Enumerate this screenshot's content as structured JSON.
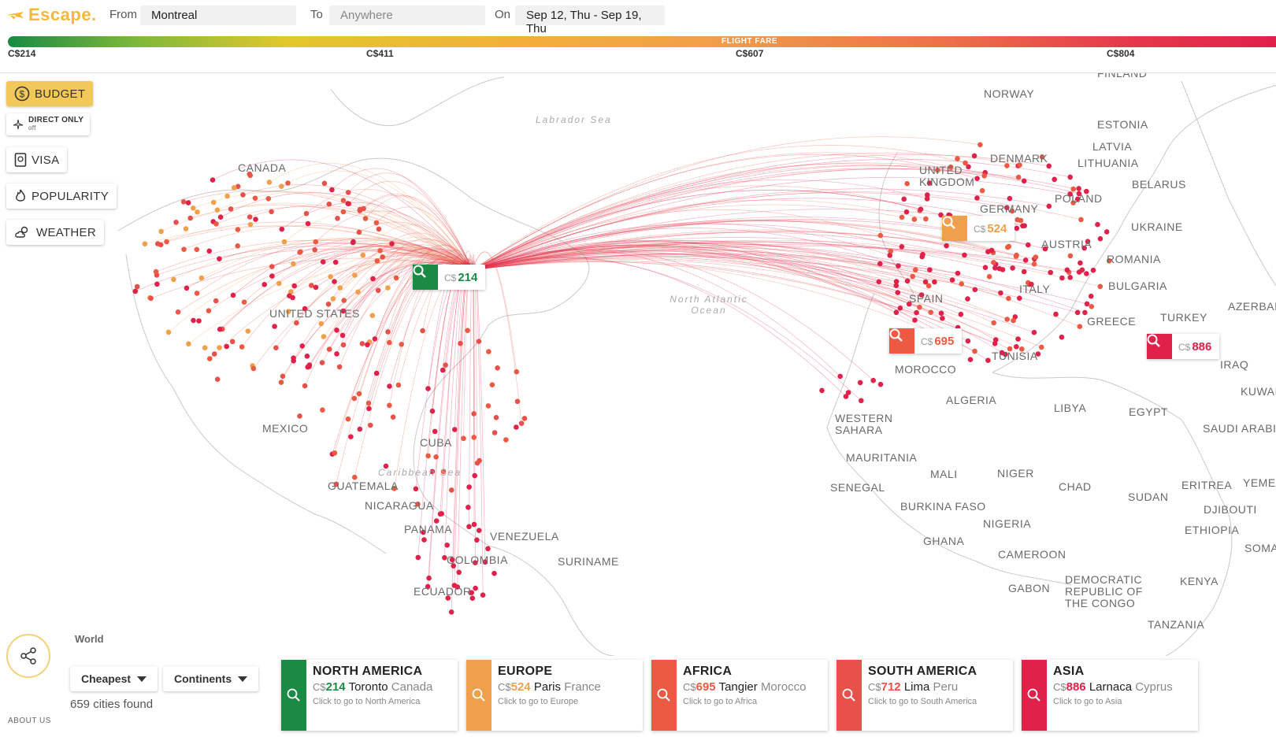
{
  "app": {
    "name": "Escape."
  },
  "search": {
    "from_label": "From",
    "from_value": "Montreal",
    "to_label": "To",
    "to_placeholder": "Anywhere",
    "on_label": "On",
    "dates": "Sep 12, Thu - Sep 19, Thu"
  },
  "fare_bar": {
    "title": "FLIGHT FARE",
    "ticks": [
      "C$214",
      "C$411",
      "C$607",
      "C$804"
    ]
  },
  "controls": {
    "budget": "BUDGET",
    "direct_only": "DIRECT ONLY",
    "direct_only_state": "off",
    "visa": "VISA",
    "popularity": "POPULARITY",
    "weather": "WEATHER"
  },
  "map": {
    "labels": [
      "CANADA",
      "UNITED STATES",
      "MEXICO",
      "CUBA",
      "GUATEMALA",
      "NICARAGUA",
      "PANAMA",
      "VENEZUELA",
      "COLOMBIA",
      "SURINAME",
      "ECUADOR",
      "NORWAY",
      "FINLAND",
      "ESTONIA",
      "LATVIA",
      "LITHUANIA",
      "DENMARK",
      "UNITED KINGDOM",
      "BELARUS",
      "POLAND",
      "GERMANY",
      "UKRAINE",
      "AUSTRIA",
      "ROMANIA",
      "BULGARIA",
      "SPAIN",
      "ITALY",
      "GREECE",
      "TURKEY",
      "AZERBAIJAN",
      "IRAQ",
      "KUWAIT",
      "TUNISIA",
      "MOROCCO",
      "ALGERIA",
      "LIBYA",
      "EGYPT",
      "SAUDI ARABIA",
      "WESTERN SAHARA",
      "MAURITANIA",
      "MALI",
      "NIGER",
      "SENEGAL",
      "CHAD",
      "SUDAN",
      "ERITREA",
      "YEMEN",
      "DJIBOUTI",
      "BURKINA FASO",
      "NIGERIA",
      "ETHIOPIA",
      "SOMALIA",
      "GHANA",
      "CAMEROON",
      "GABON",
      "DEMOCRATIC REPUBLIC OF THE CONGO",
      "KENYA",
      "TANZANIA"
    ],
    "seas": [
      "Labrador Sea",
      "North Atlantic Ocean",
      "Caribbean Sea"
    ],
    "price_tags": [
      {
        "currency": "C$",
        "amount": "214",
        "color": "#1b8a45"
      },
      {
        "currency": "C$",
        "amount": "524",
        "color": "#f0a04a"
      },
      {
        "currency": "C$",
        "amount": "695",
        "color": "#ec5a44"
      },
      {
        "currency": "C$",
        "amount": "886",
        "color": "#e0214a"
      }
    ]
  },
  "bottom": {
    "world_label": "World",
    "sort": "Cheapest",
    "group": "Continents",
    "cities_found": "659 cities found",
    "about": "ABOUT US"
  },
  "cards": [
    {
      "title": "NORTH AMERICA",
      "currency": "C$",
      "amount": "214",
      "city": "Toronto",
      "country": "Canada",
      "hint": "Click to go to North America",
      "color": "#1b8a45"
    },
    {
      "title": "EUROPE",
      "currency": "C$",
      "amount": "524",
      "city": "Paris",
      "country": "France",
      "hint": "Click to go to Europe",
      "color": "#f0a04a"
    },
    {
      "title": "AFRICA",
      "currency": "C$",
      "amount": "695",
      "city": "Tangier",
      "country": "Morocco",
      "hint": "Click to go to Africa",
      "color": "#ec5a44"
    },
    {
      "title": "SOUTH AMERICA",
      "currency": "C$",
      "amount": "712",
      "city": "Lima",
      "country": "Peru",
      "hint": "Click to go to South America",
      "color": "#e8504a"
    },
    {
      "title": "ASIA",
      "currency": "C$",
      "amount": "886",
      "city": "Larnaca",
      "country": "Cyprus",
      "hint": "Click to go to Asia",
      "color": "#e0214a"
    }
  ]
}
